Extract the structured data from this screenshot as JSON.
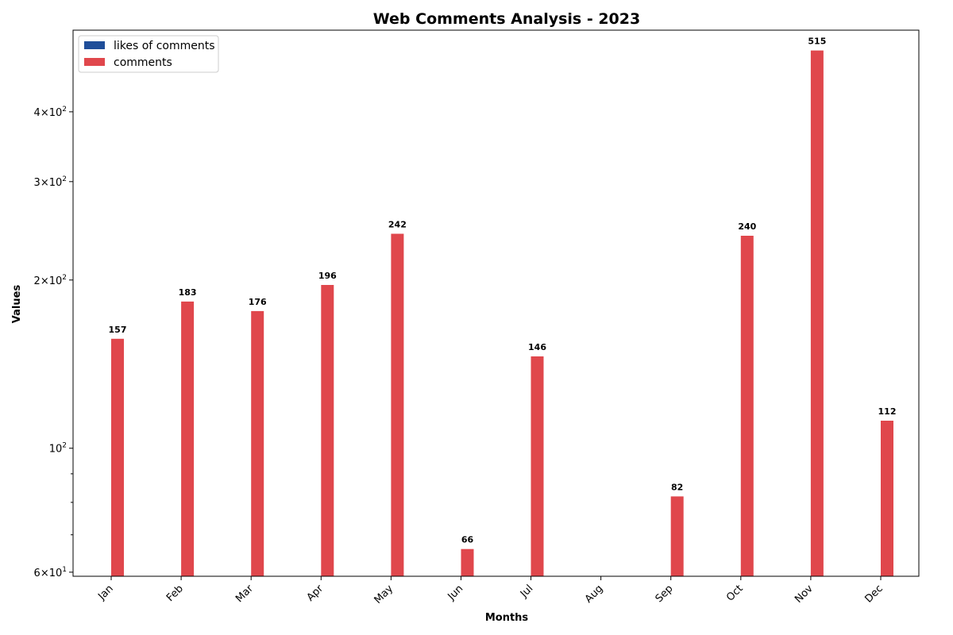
{
  "chart_data": {
    "type": "bar",
    "title": "Web Comments Analysis - 2023",
    "xlabel": "Months",
    "ylabel": "Values",
    "yscale": "log",
    "ylim": [
      59,
      560
    ],
    "categories": [
      "Jan",
      "Feb",
      "Mar",
      "Apr",
      "May",
      "Jun",
      "Jul",
      "Aug",
      "Sep",
      "Oct",
      "Nov",
      "Dec"
    ],
    "y_ticks": [
      {
        "value": 60,
        "base": "6",
        "exp": "1",
        "prefix": "6×10"
      },
      {
        "value": 100,
        "base": "",
        "exp": "2",
        "prefix": "10"
      },
      {
        "value": 200,
        "base": "2",
        "exp": "2",
        "prefix": "2×10"
      },
      {
        "value": 300,
        "base": "3",
        "exp": "2",
        "prefix": "3×10"
      },
      {
        "value": 400,
        "base": "4",
        "exp": "2",
        "prefix": "4×10"
      }
    ],
    "y_minor_ticks": [
      70,
      80,
      90
    ],
    "series": [
      {
        "name": "likes of comments",
        "color": "#1f4e99",
        "values": [
          null,
          null,
          null,
          null,
          null,
          null,
          null,
          null,
          null,
          null,
          null,
          null
        ]
      },
      {
        "name": "comments",
        "color": "#e0474c",
        "values": [
          157,
          183,
          176,
          196,
          242,
          66,
          146,
          null,
          82,
          240,
          515,
          112
        ],
        "labels": [
          "157",
          "183",
          "176",
          "196",
          "242",
          "66",
          "146",
          "",
          "82",
          "240",
          "515",
          "112"
        ]
      }
    ],
    "legend": {
      "position": "top-left"
    },
    "grid": false
  }
}
